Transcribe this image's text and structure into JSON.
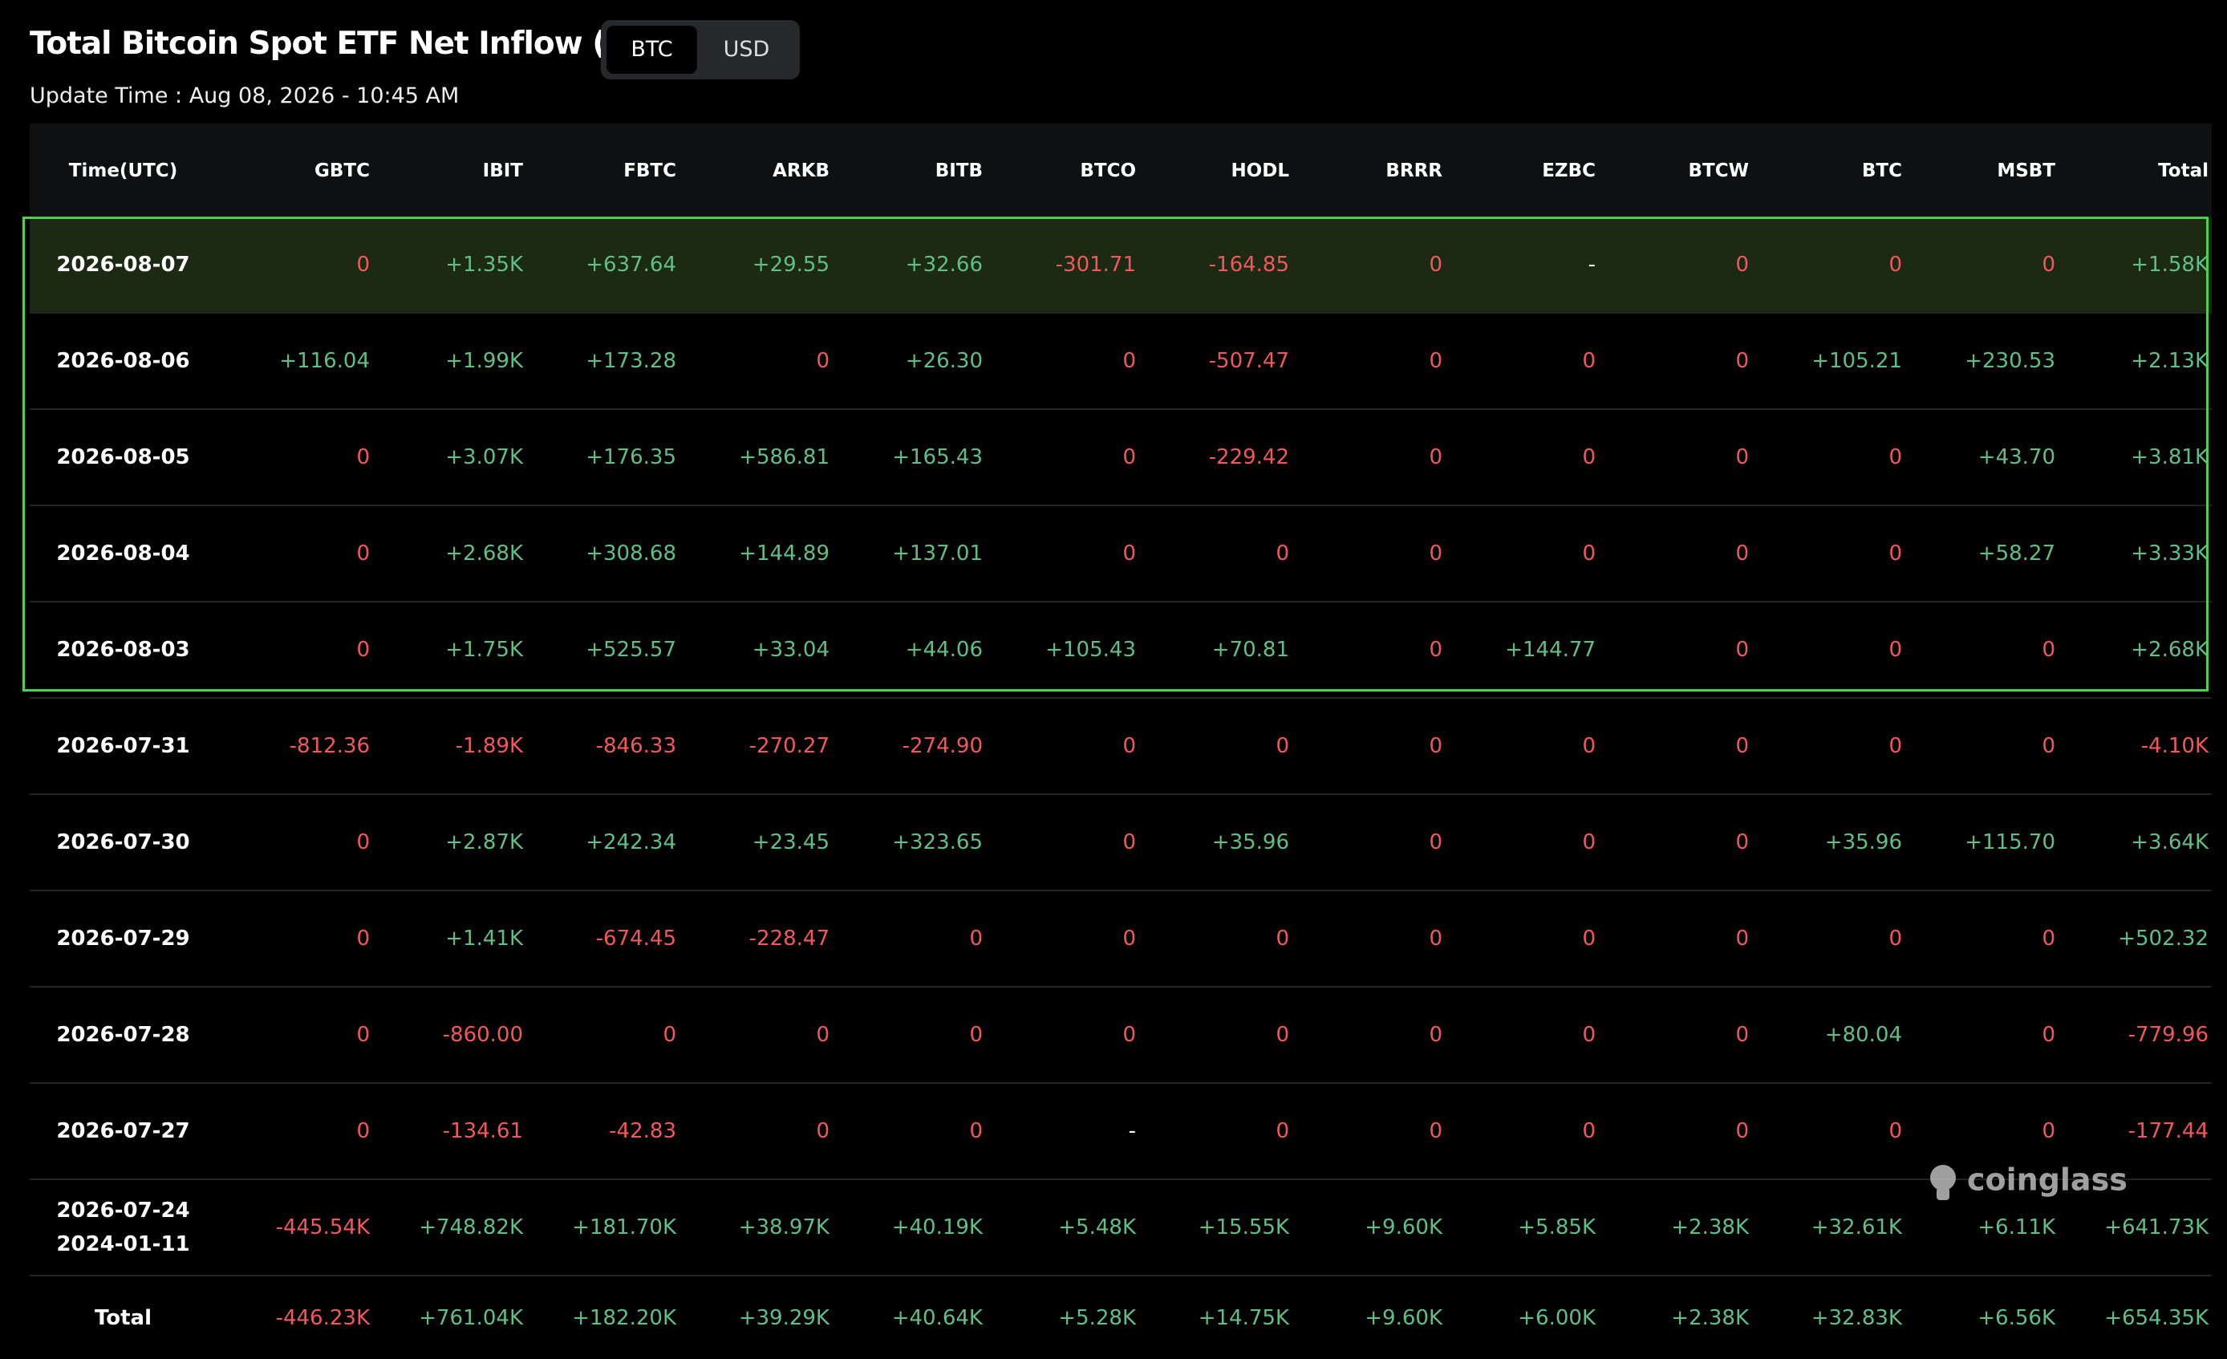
{
  "header": {
    "title": "Total Bitcoin Spot ETF Net Inflow (BTC)",
    "toggle": [
      "BTC",
      "USD"
    ],
    "update_time": "Update Time : Aug 08, 2026 - 10:45 AM"
  },
  "table": {
    "columns": [
      "Time(UTC)",
      "GBTC",
      "IBIT",
      "FBTC",
      "ARKB",
      "BITB",
      "BTCO",
      "HODL",
      "BRRR",
      "EZBC",
      "BTCW",
      "BTC",
      "MSBT",
      "Total"
    ],
    "rows": [
      [
        "2026-08-07",
        "0",
        "+1.35K",
        "+637.64",
        "+29.55",
        "+32.66",
        "-301.71",
        "-164.85",
        "0",
        "-",
        "0",
        "0",
        "0",
        "+1.58K"
      ],
      [
        "2026-08-06",
        "+116.04",
        "+1.99K",
        "+173.28",
        "0",
        "+26.30",
        "0",
        "-507.47",
        "0",
        "0",
        "0",
        "+105.21",
        "+230.53",
        "+2.13K"
      ],
      [
        "2026-08-05",
        "0",
        "+3.07K",
        "+176.35",
        "+586.81",
        "+165.43",
        "0",
        "-229.42",
        "0",
        "0",
        "0",
        "0",
        "+43.70",
        "+3.81K"
      ],
      [
        "2026-08-04",
        "0",
        "+2.68K",
        "+308.68",
        "+144.89",
        "+137.01",
        "0",
        "0",
        "0",
        "0",
        "0",
        "0",
        "+58.27",
        "+3.33K"
      ],
      [
        "2026-08-03",
        "0",
        "+1.75K",
        "+525.57",
        "+33.04",
        "+44.06",
        "+105.43",
        "+70.81",
        "0",
        "+144.77",
        "0",
        "0",
        "0",
        "+2.68K"
      ],
      [
        "2026-07-31",
        "-812.36",
        "-1.89K",
        "-846.33",
        "-270.27",
        "-274.90",
        "0",
        "0",
        "0",
        "0",
        "0",
        "0",
        "0",
        "-4.10K"
      ],
      [
        "2026-07-30",
        "0",
        "+2.87K",
        "+242.34",
        "+23.45",
        "+323.65",
        "0",
        "+35.96",
        "0",
        "0",
        "0",
        "+35.96",
        "+115.70",
        "+3.64K"
      ],
      [
        "2026-07-29",
        "0",
        "+1.41K",
        "-674.45",
        "-228.47",
        "0",
        "0",
        "0",
        "0",
        "0",
        "0",
        "0",
        "0",
        "+502.32"
      ],
      [
        "2026-07-28",
        "0",
        "-860.00",
        "0",
        "0",
        "0",
        "0",
        "0",
        "0",
        "0",
        "0",
        "+80.04",
        "0",
        "-779.96"
      ],
      [
        "2026-07-27",
        "0",
        "-134.61",
        "-42.83",
        "0",
        "0",
        "-",
        "0",
        "0",
        "0",
        "0",
        "0",
        "0",
        "-177.44"
      ],
      [
        [
          "2026-07-24",
          "2024-01-11"
        ],
        "-445.54K",
        "+748.82K",
        "+181.70K",
        "+38.97K",
        "+40.19K",
        "+5.48K",
        "+15.55K",
        "+9.60K",
        "+5.85K",
        "+2.38K",
        "+32.61K",
        "+6.11K",
        "+641.73K"
      ],
      [
        "Total",
        "-446.23K",
        "+761.04K",
        "+182.20K",
        "+39.29K",
        "+40.64K",
        "+5.28K",
        "+14.75K",
        "+9.60K",
        "+6.00K",
        "+2.38K",
        "+32.83K",
        "+6.56K",
        "+654.35K"
      ]
    ]
  },
  "watermark": "coinglass"
}
